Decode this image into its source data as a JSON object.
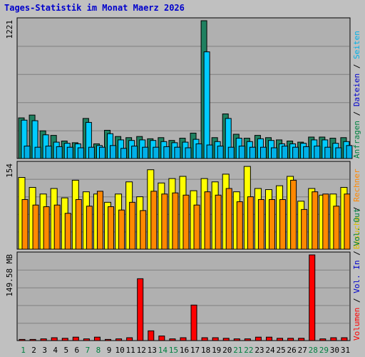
{
  "title": "Tages-Statistik im Monat Maerz 2026",
  "colors": {
    "background": "#c0c0c0",
    "plot_bg": "#b0b0b0",
    "grid": "#808080",
    "title": "#0000cc",
    "weekday": "#000000",
    "weekend": "#008040",
    "anfragen": "#1f8060",
    "dateien": "#00ccff",
    "seiten": "#00b0e8",
    "besuche": "#ffff00",
    "rechner": "#ff8800",
    "volumen": "#ff0000",
    "vol_in": "#0000cc",
    "vol_out": "#008040"
  },
  "chart_data": [
    {
      "type": "bar",
      "panel": "hits",
      "ymax_label": "1221",
      "ylim": [
        0,
        1221
      ],
      "grid": true,
      "categories": [
        "1",
        "2",
        "3",
        "4",
        "5",
        "6",
        "7",
        "8",
        "9",
        "10",
        "11",
        "12",
        "13",
        "14",
        "15",
        "16",
        "17",
        "18",
        "19",
        "20",
        "21",
        "22",
        "23",
        "24",
        "25",
        "26",
        "27",
        "28",
        "29",
        "30",
        "31"
      ],
      "weekend_days": [
        "1",
        "7",
        "8",
        "14",
        "15",
        "21",
        "22",
        "28",
        "29"
      ],
      "series": [
        {
          "name": "Anfragen",
          "values": [
            360,
            385,
            245,
            205,
            155,
            140,
            355,
            130,
            250,
            195,
            185,
            195,
            175,
            185,
            160,
            180,
            225,
            1221,
            185,
            395,
            215,
            180,
            205,
            185,
            165,
            155,
            145,
            190,
            190,
            180,
            185
          ]
        },
        {
          "name": "Dateien",
          "values": [
            340,
            335,
            210,
            145,
            135,
            130,
            320,
            115,
            220,
            165,
            160,
            165,
            160,
            150,
            140,
            145,
            170,
            945,
            150,
            355,
            180,
            150,
            175,
            160,
            130,
            130,
            135,
            165,
            165,
            135,
            150
          ]
        },
        {
          "name": "Seiten",
          "values": [
            110,
            100,
            110,
            105,
            100,
            95,
            100,
            100,
            115,
            90,
            110,
            100,
            100,
            105,
            100,
            95,
            130,
            120,
            110,
            100,
            110,
            100,
            100,
            95,
            110,
            100,
            105,
            110,
            100,
            95,
            115
          ]
        }
      ]
    },
    {
      "type": "bar",
      "panel": "visits",
      "ymax_label": "154",
      "ylim": [
        0,
        154
      ],
      "grid": true,
      "categories": [
        "1",
        "2",
        "3",
        "4",
        "5",
        "6",
        "7",
        "8",
        "9",
        "10",
        "11",
        "12",
        "13",
        "14",
        "15",
        "16",
        "17",
        "18",
        "19",
        "20",
        "21",
        "22",
        "23",
        "24",
        "25",
        "26",
        "27",
        "28",
        "29",
        "30",
        "31"
      ],
      "series": [
        {
          "name": "Besuche",
          "values": [
            130,
            112,
            100,
            110,
            93,
            125,
            104,
            100,
            85,
            100,
            122,
            95,
            144,
            120,
            128,
            132,
            106,
            128,
            122,
            136,
            104,
            150,
            110,
            108,
            115,
            132,
            87,
            110,
            98,
            100,
            112
          ]
        },
        {
          "name": "Rechner",
          "values": [
            90,
            80,
            77,
            80,
            65,
            90,
            78,
            105,
            77,
            71,
            85,
            70,
            105,
            100,
            102,
            98,
            80,
            104,
            98,
            110,
            86,
            95,
            90,
            90,
            90,
            125,
            72,
            104,
            100,
            78,
            100
          ]
        }
      ]
    },
    {
      "type": "bar",
      "panel": "volume",
      "ymax_label": "149.58 MB",
      "ylim": [
        0,
        149.58
      ],
      "grid": true,
      "categories": [
        "1",
        "2",
        "3",
        "4",
        "5",
        "6",
        "7",
        "8",
        "9",
        "10",
        "11",
        "12",
        "13",
        "14",
        "15",
        "16",
        "17",
        "18",
        "19",
        "20",
        "21",
        "22",
        "23",
        "24",
        "25",
        "26",
        "27",
        "28",
        "29",
        "30",
        "31"
      ],
      "series": [
        {
          "name": "Volumen",
          "values": [
            2,
            2,
            3,
            5,
            4,
            6,
            3,
            6,
            2,
            3,
            5,
            108,
            17,
            8,
            3,
            5,
            62,
            5,
            5,
            4,
            3,
            3,
            6,
            6,
            4,
            4,
            4,
            149.58,
            3,
            5,
            5
          ]
        }
      ]
    }
  ],
  "side_labels": {
    "hits": [
      {
        "text": "Anfragen",
        "color": "#008040"
      },
      {
        "text": "Dateien",
        "color": "#0000cc"
      },
      {
        "text": "Seiten",
        "color": "#00b0e8"
      }
    ],
    "visits": [
      {
        "text": "Besuche",
        "color": "#e0c000"
      },
      {
        "text": "Rechner",
        "color": "#ff8800"
      }
    ],
    "volume": [
      {
        "text": "Volumen",
        "color": "#ff0000"
      },
      {
        "text": "Vol. In",
        "color": "#0000cc"
      },
      {
        "text": "Vol. Out",
        "color": "#008040"
      }
    ]
  }
}
